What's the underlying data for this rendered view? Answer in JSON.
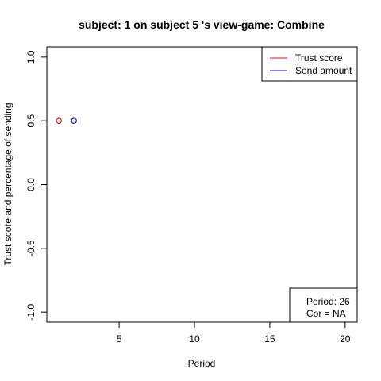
{
  "chart_data": {
    "type": "scatter",
    "title": "subject:  1  on subject  5 's view-game:  Combine",
    "xlabel": "Period",
    "ylabel": "Trust score and percentage of sending",
    "xlim": [
      0.2,
      20.8
    ],
    "ylim": [
      -1.08,
      1.08
    ],
    "xticks": [
      5,
      10,
      15,
      20
    ],
    "yticks": [
      -1.0,
      -0.5,
      0.0,
      0.5,
      1.0
    ],
    "xtick_labels": [
      "5",
      "10",
      "15",
      "20"
    ],
    "ytick_labels": [
      "-1.0",
      "-0.5",
      "0.0",
      "0.5",
      "1.0"
    ],
    "grid": false,
    "series": [
      {
        "name": "Trust score",
        "color": "#ff0000",
        "marker": "open-circle",
        "points": [
          {
            "x": 1,
            "y": 0.5
          }
        ]
      },
      {
        "name": "Send amount",
        "color": "#0000ff",
        "marker": "open-circle",
        "points": [
          {
            "x": 2,
            "y": 0.5
          }
        ]
      }
    ],
    "legend": {
      "position": "top-right"
    },
    "info_box": {
      "position": "bottom-right",
      "lines": [
        "Period:  26",
        "Cor =  NA"
      ]
    }
  }
}
